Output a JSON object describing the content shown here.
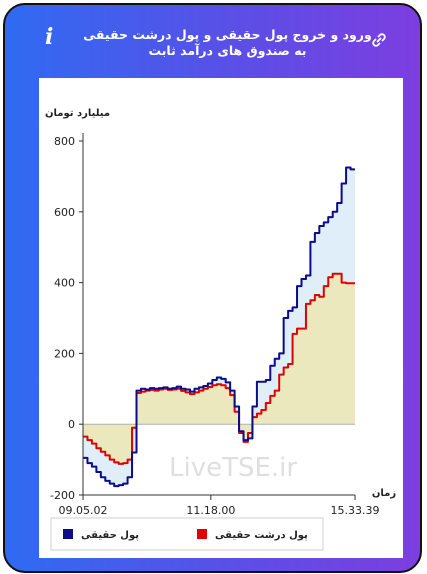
{
  "header": {
    "title": "ورود و خروج پول حقیقی و پول درشت حقیقی به صندوق های درآمد ثابت",
    "info_icon": "i",
    "link_icon": "link-icon"
  },
  "watermark": "LiveTSE.ir",
  "chart_data": {
    "type": "line",
    "title": "",
    "ylabel": "میلیارد تومان",
    "xlabel": "زمان",
    "ylim": [
      -200,
      800
    ],
    "yticks": [
      800,
      600,
      400,
      200,
      0,
      -200
    ],
    "xticks": [
      "09.05.02",
      "11.18.00",
      "15.33.39"
    ],
    "legend_position": "bottom",
    "series": [
      {
        "name": "پول حقیقی",
        "color": "#0b0b8c",
        "fill": "#dfeef8",
        "values": [
          -95,
          -110,
          -120,
          -135,
          -150,
          -160,
          -168,
          -175,
          -172,
          -168,
          -150,
          -80,
          95,
          100,
          98,
          102,
          100,
          102,
          104,
          100,
          102,
          106,
          100,
          98,
          92,
          100,
          104,
          108,
          115,
          125,
          132,
          128,
          118,
          95,
          50,
          -20,
          -45,
          -40,
          50,
          120,
          120,
          125,
          165,
          185,
          200,
          300,
          320,
          330,
          390,
          410,
          420,
          515,
          540,
          560,
          570,
          585,
          600,
          625,
          680,
          725,
          720,
          720
        ]
      },
      {
        "name": "پول درشت حقیقی",
        "color": "#e00000",
        "fill": "#ece8bd",
        "values": [
          -35,
          -45,
          -55,
          -68,
          -78,
          -88,
          -100,
          -108,
          -112,
          -110,
          -100,
          -10,
          88,
          92,
          95,
          97,
          95,
          98,
          100,
          97,
          98,
          100,
          94,
          90,
          85,
          90,
          95,
          100,
          105,
          110,
          113,
          110,
          102,
          82,
          35,
          -25,
          -50,
          -25,
          20,
          30,
          40,
          60,
          80,
          95,
          140,
          160,
          170,
          255,
          270,
          270,
          340,
          350,
          365,
          360,
          390,
          415,
          425,
          425,
          400,
          398,
          398,
          398
        ]
      }
    ]
  }
}
